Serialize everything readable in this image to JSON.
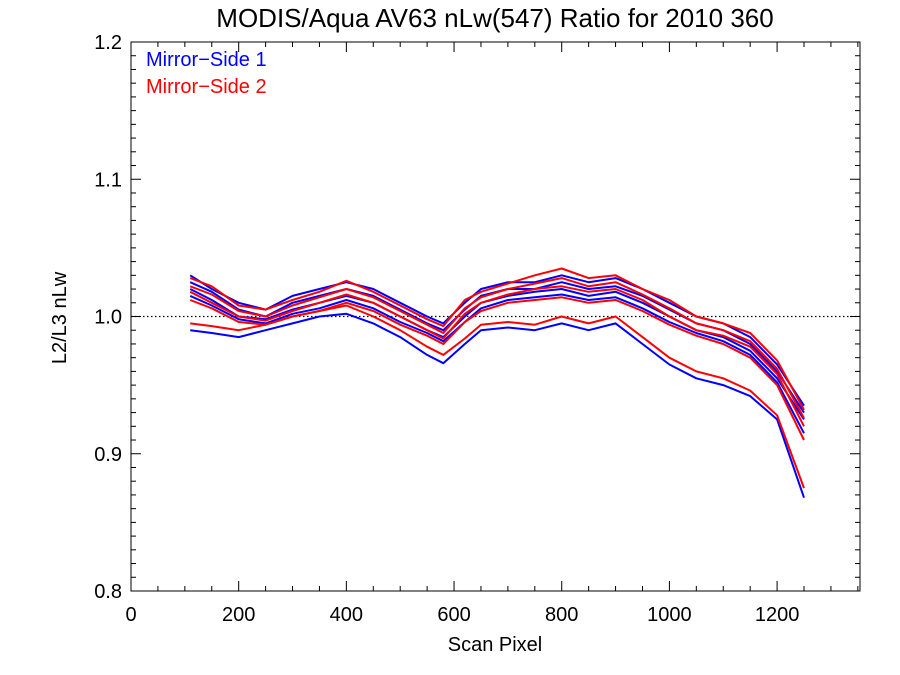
{
  "chart_data": {
    "type": "line",
    "title": "MODIS/Aqua AV63 nLw(547) Ratio for 2010 360",
    "xlabel": "Scan Pixel",
    "ylabel": "L2/L3 nLw",
    "xlim": [
      0,
      1354
    ],
    "ylim": [
      0.8,
      1.2
    ],
    "x_ticks": [
      0,
      200,
      400,
      600,
      800,
      1000,
      1200
    ],
    "x_tick_labels": [
      "0",
      "200",
      "400",
      "600",
      "800",
      "1000",
      "1200"
    ],
    "y_ticks": [
      0.8,
      0.9,
      1.0,
      1.1,
      1.2
    ],
    "y_tick_labels": [
      "0.8",
      "0.9",
      "1.0",
      "1.1",
      "1.2"
    ],
    "reference_line": {
      "y": 1.0,
      "style": "dotted"
    },
    "legend": {
      "position": "top-left",
      "entries": [
        {
          "label": "Mirror−Side 1",
          "color": "#0000ff"
        },
        {
          "label": "Mirror−Side 2",
          "color": "#ff0000"
        }
      ]
    },
    "x": [
      110,
      150,
      200,
      250,
      300,
      350,
      400,
      450,
      500,
      550,
      580,
      620,
      650,
      700,
      750,
      800,
      850,
      900,
      950,
      1000,
      1050,
      1100,
      1150,
      1200,
      1250
    ],
    "series": [
      {
        "group": "Mirror−Side 1",
        "color": "#0000ff",
        "values": [
          1.03,
          1.02,
          1.01,
          1.005,
          1.015,
          1.02,
          1.025,
          1.02,
          1.01,
          1.0,
          0.995,
          1.01,
          1.02,
          1.025,
          1.025,
          1.03,
          1.025,
          1.028,
          1.02,
          1.01,
          1.0,
          0.995,
          0.985,
          0.965,
          0.935
        ]
      },
      {
        "group": "Mirror−Side 1",
        "color": "#0000ff",
        "values": [
          1.025,
          1.018,
          1.005,
          1.0,
          1.01,
          1.015,
          1.02,
          1.015,
          1.005,
          0.995,
          0.99,
          1.005,
          1.015,
          1.02,
          1.02,
          1.025,
          1.02,
          1.022,
          1.015,
          1.005,
          0.995,
          0.99,
          0.98,
          0.96,
          0.93
        ]
      },
      {
        "group": "Mirror−Side 1",
        "color": "#0000ff",
        "values": [
          1.02,
          1.012,
          1.0,
          0.998,
          1.005,
          1.01,
          1.015,
          1.01,
          1.0,
          0.99,
          0.985,
          1.0,
          1.01,
          1.015,
          1.018,
          1.02,
          1.015,
          1.018,
          1.01,
          1.0,
          0.99,
          0.985,
          0.975,
          0.955,
          0.925
        ]
      },
      {
        "group": "Mirror−Side 1",
        "color": "#0000ff",
        "values": [
          1.015,
          1.008,
          0.998,
          0.995,
          1.002,
          1.006,
          1.012,
          1.006,
          0.996,
          0.988,
          0.982,
          0.996,
          1.006,
          1.012,
          1.014,
          1.016,
          1.012,
          1.014,
          1.006,
          0.996,
          0.988,
          0.982,
          0.972,
          0.952,
          0.915
        ]
      },
      {
        "group": "Mirror−Side 1",
        "color": "#0000ff",
        "values": [
          0.99,
          0.988,
          0.985,
          0.99,
          0.995,
          1.0,
          1.002,
          0.995,
          0.985,
          0.972,
          0.966,
          0.98,
          0.99,
          0.992,
          0.99,
          0.995,
          0.99,
          0.995,
          0.98,
          0.965,
          0.955,
          0.95,
          0.942,
          0.925,
          0.868
        ]
      },
      {
        "group": "Mirror−Side 2",
        "color": "#ff0000",
        "values": [
          1.028,
          1.022,
          1.008,
          1.005,
          1.012,
          1.018,
          1.026,
          1.018,
          1.008,
          0.998,
          0.993,
          1.012,
          1.018,
          1.024,
          1.03,
          1.035,
          1.028,
          1.03,
          1.02,
          1.012,
          1.0,
          0.995,
          0.988,
          0.968,
          0.932
        ]
      },
      {
        "group": "Mirror−Side 2",
        "color": "#ff0000",
        "values": [
          1.022,
          1.016,
          1.004,
          1.0,
          1.008,
          1.014,
          1.02,
          1.014,
          1.004,
          0.994,
          0.988,
          1.006,
          1.014,
          1.02,
          1.024,
          1.028,
          1.022,
          1.025,
          1.016,
          1.006,
          0.995,
          0.99,
          0.982,
          0.962,
          0.926
        ]
      },
      {
        "group": "Mirror−Side 2",
        "color": "#ff0000",
        "values": [
          1.018,
          1.01,
          1.0,
          0.997,
          1.004,
          1.01,
          1.016,
          1.01,
          1.0,
          0.99,
          0.984,
          1.002,
          1.01,
          1.016,
          1.02,
          1.022,
          1.018,
          1.02,
          1.012,
          1.0,
          0.99,
          0.986,
          0.978,
          0.958,
          0.92
        ]
      },
      {
        "group": "Mirror−Side 2",
        "color": "#ff0000",
        "values": [
          1.012,
          1.006,
          0.996,
          0.994,
          1.0,
          1.004,
          1.01,
          1.004,
          0.994,
          0.986,
          0.98,
          0.996,
          1.004,
          1.01,
          1.012,
          1.014,
          1.01,
          1.012,
          1.004,
          0.994,
          0.986,
          0.98,
          0.97,
          0.95,
          0.91
        ]
      },
      {
        "group": "Mirror−Side 2",
        "color": "#ff0000",
        "values": [
          0.995,
          0.993,
          0.99,
          0.994,
          1.0,
          1.004,
          1.008,
          1.0,
          0.99,
          0.978,
          0.972,
          0.984,
          0.994,
          0.996,
          0.994,
          1.0,
          0.995,
          1.0,
          0.985,
          0.97,
          0.96,
          0.955,
          0.946,
          0.928,
          0.875
        ]
      }
    ]
  }
}
